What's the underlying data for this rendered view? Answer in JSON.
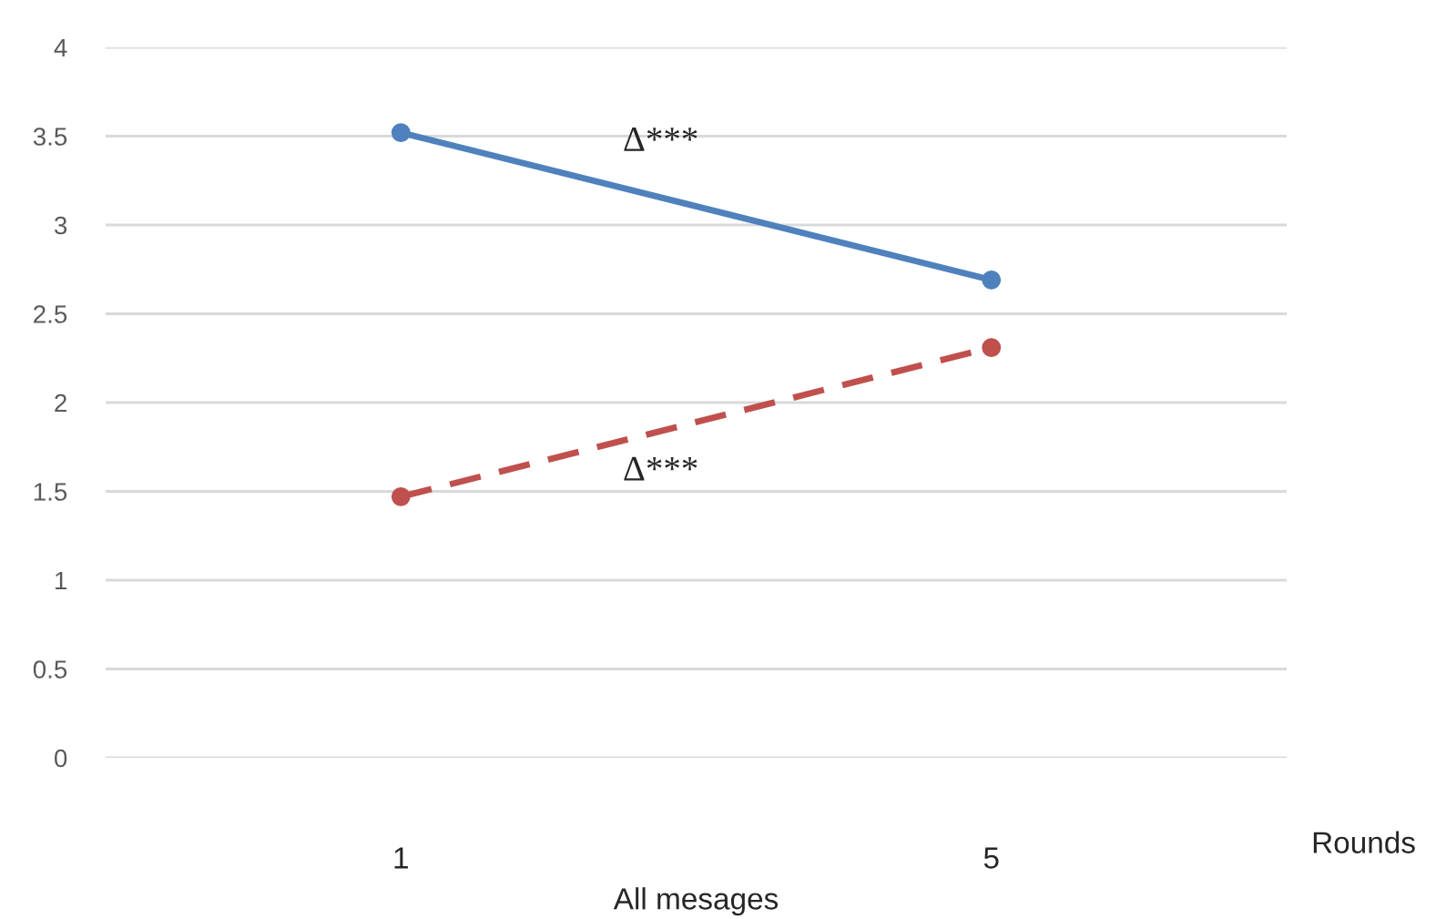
{
  "chart_data": {
    "type": "line",
    "xlabel": "All mesages",
    "categories": [
      "1",
      "5"
    ],
    "series": [
      {
        "color": "#4f81bd",
        "values": [
          3.52,
          2.69
        ],
        "line_style": "solid"
      },
      {
        "color": "#c0504d",
        "values": [
          1.47,
          2.31
        ],
        "line_style": "dashed"
      }
    ],
    "annotations": [
      "Δ***",
      "Δ***",
      "Rounds"
    ],
    "ylim": [
      0,
      4
    ],
    "yticks": [
      0,
      0.5,
      1,
      1.5,
      2,
      2.5,
      3,
      3.5,
      4
    ],
    "grid": "y",
    "marker": "circle",
    "legend": false
  }
}
